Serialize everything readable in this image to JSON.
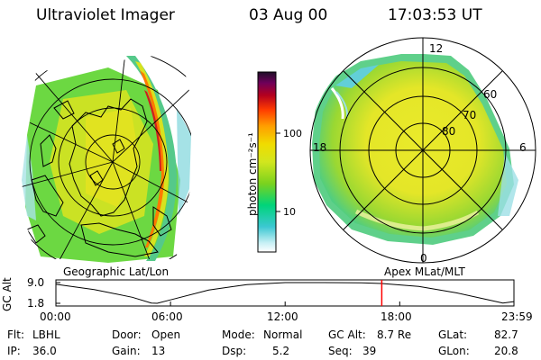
{
  "header": {
    "instrument": "Ultraviolet Imager",
    "date": "03 Aug 00",
    "time": "17:03:53 UT"
  },
  "colorbar": {
    "label": "photon cm⁻²s⁻¹",
    "ticks": [
      "100",
      "10"
    ],
    "tick_values": [
      100,
      10
    ],
    "scale": "log",
    "range": [
      2,
      600
    ],
    "colors": [
      "#ffffff",
      "#c8f0f5",
      "#3cc8d2",
      "#00d47a",
      "#7ad21e",
      "#d2e61e",
      "#f0dc00",
      "#ff9e00",
      "#ff3c00",
      "#b4001e",
      "#6e005a",
      "#1e0f28"
    ]
  },
  "geo_panel": {
    "label": "Geographic Lat/Lon"
  },
  "mag_panel": {
    "label": "Apex MLat/MLT",
    "mlt_labels": [
      "12",
      "18",
      "6",
      "0"
    ],
    "lat_labels": [
      "60",
      "70",
      "80"
    ]
  },
  "altitude_plot": {
    "ylabel": "GC Alt",
    "yticks": [
      "9.0",
      "1.8"
    ],
    "ytick_values": [
      9.0,
      1.8
    ],
    "xticks": [
      "00:00",
      "06:00",
      "12:00",
      "18:00",
      "23:59"
    ],
    "xtick_hours": [
      0,
      6,
      12,
      18,
      23.98
    ],
    "series": [
      [
        0,
        8.4
      ],
      [
        2,
        6.6
      ],
      [
        4,
        3.9
      ],
      [
        5,
        1.9
      ],
      [
        5.3,
        1.8
      ],
      [
        6,
        3.0
      ],
      [
        8,
        6.4
      ],
      [
        10,
        8.3
      ],
      [
        12,
        9.0
      ],
      [
        14,
        9.0
      ],
      [
        16,
        8.9
      ],
      [
        17.06,
        8.7
      ],
      [
        19,
        7.7
      ],
      [
        21,
        5.4
      ],
      [
        22.5,
        3.2
      ],
      [
        23.4,
        1.9
      ],
      [
        23.98,
        2.4
      ]
    ],
    "current_hour": 17.06,
    "current_color": "#ff0000"
  },
  "footer": {
    "flt_label": "Flt:",
    "flt_value": "LBHL",
    "ip_label": "IP:",
    "ip_value": "36.0",
    "door_label": "Door:",
    "door_value": "Open",
    "gain_label": "Gain:",
    "gain_value": "13",
    "mode_label": "Mode:",
    "mode_value": "Normal",
    "dsp_label": "Dsp:",
    "dsp_value": "5.2",
    "gcalt_label": "GC Alt:",
    "gcalt_value": "8.7 Re",
    "seq_label": "Seq:",
    "seq_value": "39",
    "glat_label": "GLat:",
    "glat_value": "82.7",
    "glon_label": "GLon:",
    "glon_value": "20.8"
  }
}
